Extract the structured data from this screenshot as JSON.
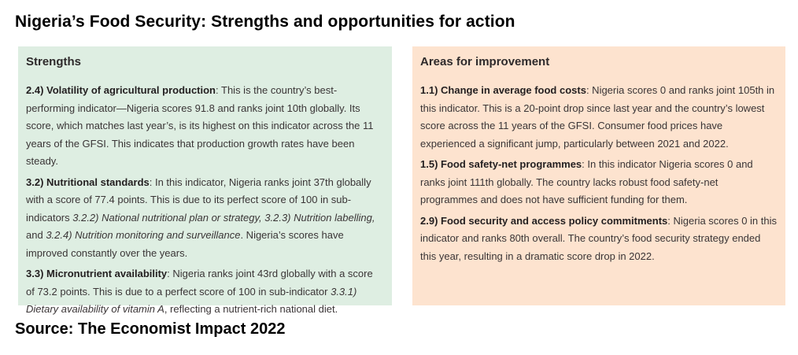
{
  "title": "Nigeria’s Food Security: Strengths and opportunities for action",
  "source": "Source: The Economist Impact 2022",
  "strengths": {
    "heading": "Strengths",
    "items": [
      {
        "lead": "2.4) Volatility of agricultural production",
        "text": ": This is the country’s best-performing indicator—Nigeria scores 91.8 and ranks joint 10th globally. Its score, which matches last year’s, is its highest on this indicator across the 11 years of the GFSI. This indicates that production growth rates have been steady."
      },
      {
        "lead": "3.2) Nutritional standards",
        "text1": ": In this indicator, Nigeria ranks joint 37th globally with a score of 77.4 points. This is due to its perfect score of 100 in sub-indicators ",
        "italic1": "3.2.2) National nutritional plan or strategy, 3.2.3) Nutrition labelling,",
        "text2": " and ",
        "italic2": "3.2.4) Nutrition monitoring and surveillance",
        "text3": ". Nigeria’s scores have improved constantly over the years."
      },
      {
        "lead": "3.3) Micronutrient availability",
        "text1": ": Nigeria ranks joint 43rd globally with a score of 73.2 points. This is due to a perfect score of 100 in sub-indicator ",
        "italic1": "3.3.1) Dietary availability of vitamin A",
        "text2": ", reflecting a nutrient-rich national diet."
      }
    ]
  },
  "improvements": {
    "heading": "Areas for improvement",
    "items": [
      {
        "lead": "1.1) Change in average food costs",
        "text": ": Nigeria scores 0 and ranks joint 105th in this indicator. This is a 20-point drop since last year and the country’s lowest score across the 11 years of the GFSI. Consumer food prices have experienced a significant jump, particularly between 2021 and 2022."
      },
      {
        "lead": "1.5) Food safety-net programmes",
        "text": ": In this indicator Nigeria scores 0 and ranks joint 111th globally. The country lacks robust food safety-net programmes and does not have sufficient funding for them."
      },
      {
        "lead": "2.9) Food security and access policy commitments",
        "text": ": Nigeria scores 0 in this indicator and ranks 80th overall. The country’s food security strategy ended this year, resulting in a dramatic score drop in 2022."
      }
    ]
  }
}
